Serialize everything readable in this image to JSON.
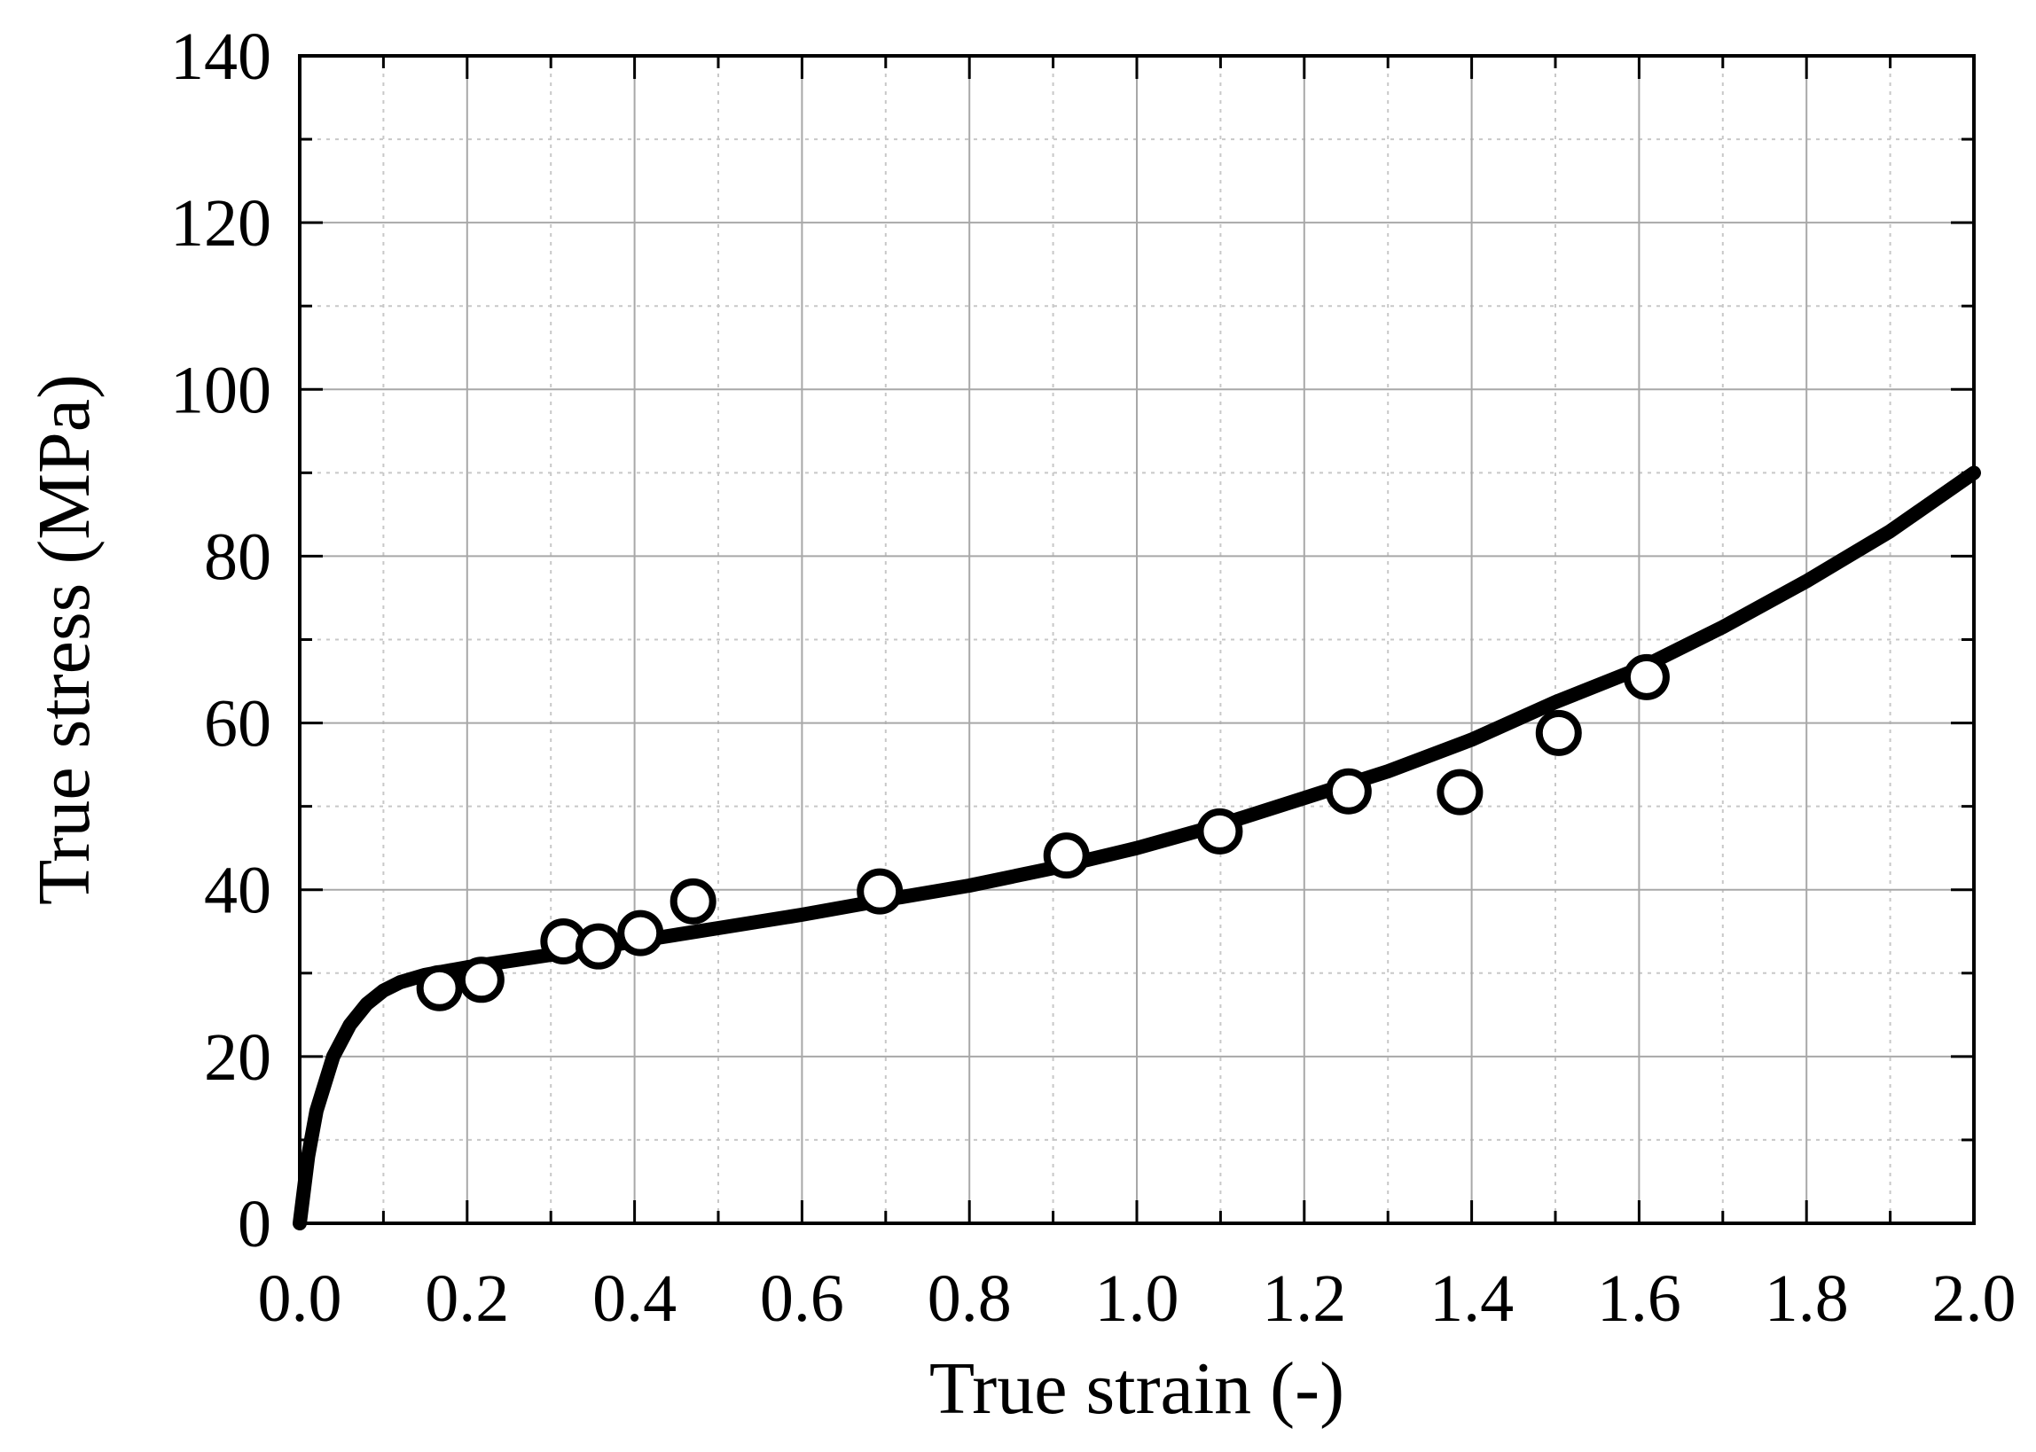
{
  "chart_data": {
    "type": "scatter",
    "xlabel": "True strain (-)",
    "ylabel": "True stress (MPa)",
    "xlim": [
      0,
      2.0
    ],
    "ylim": [
      0,
      140
    ],
    "xticks": [
      "0.0",
      "0.2",
      "0.4",
      "0.6",
      "0.8",
      "1.0",
      "1.2",
      "1.4",
      "1.6",
      "1.8",
      "2.0"
    ],
    "yticks": [
      "0",
      "20",
      "40",
      "60",
      "80",
      "100",
      "120",
      "140"
    ],
    "grid": true,
    "minor_grid": true,
    "series": [
      {
        "kind": "line",
        "color": "#000000",
        "x": [
          0,
          0.01,
          0.02,
          0.04,
          0.06,
          0.08,
          0.1,
          0.12,
          0.15,
          0.2,
          0.3,
          0.4,
          0.5,
          0.6,
          0.7,
          0.8,
          0.9,
          1.0,
          1.1,
          1.2,
          1.3,
          1.4,
          1.5,
          1.6,
          1.7,
          1.8,
          1.9,
          2.0
        ],
        "y": [
          0,
          8,
          13.5,
          20,
          23.8,
          26.3,
          27.9,
          28.9,
          29.8,
          30.7,
          32.2,
          33.8,
          35.4,
          37.0,
          38.8,
          40.5,
          42.6,
          45.0,
          47.8,
          51.0,
          54.2,
          58.0,
          62.5,
          66.5,
          71.5,
          77.0,
          83.0,
          90.0
        ]
      },
      {
        "kind": "scatter",
        "marker": "open-circle",
        "color": "#000000",
        "x": [
          0.167,
          0.217,
          0.315,
          0.357,
          0.407,
          0.47,
          0.693,
          0.916,
          1.099,
          1.253,
          1.386,
          1.504,
          1.609
        ],
        "y": [
          28.2,
          29.2,
          33.8,
          33.2,
          34.8,
          38.6,
          39.8,
          44.1,
          47.0,
          51.8,
          51.7,
          58.8,
          65.5
        ]
      }
    ]
  }
}
